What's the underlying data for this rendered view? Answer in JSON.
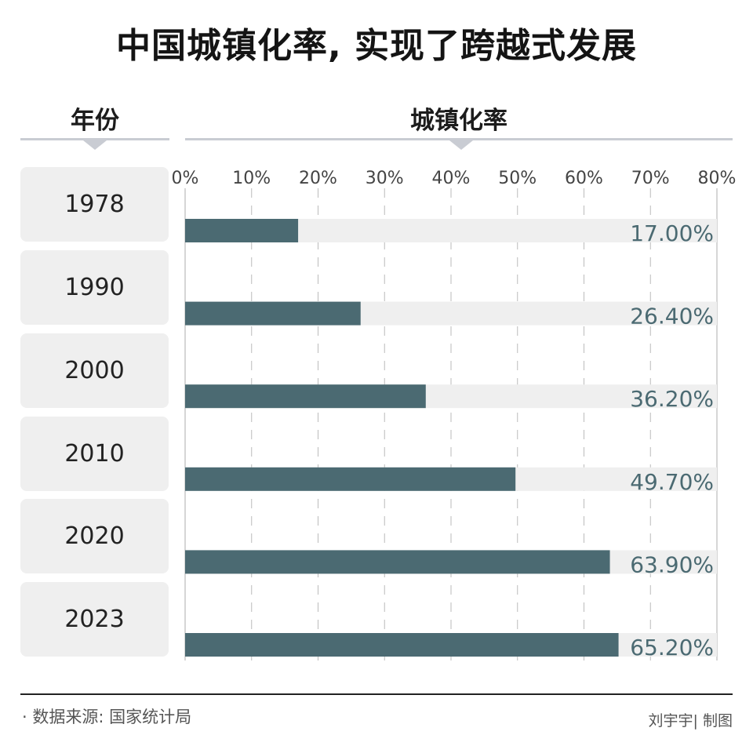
{
  "header": {
    "title": "中国城镇化率, 实现了跨越式发展",
    "year_column": "年份",
    "rate_column": "城镇化率"
  },
  "footer": {
    "source": "· 数据来源: 国家统计局",
    "credit": "刘宇宇| 制图"
  },
  "colors": {
    "bar": "#4b6a72",
    "track": "#efefef",
    "value_label": "#4b6a72",
    "tick_label": "#444444",
    "grid": "#bbbbbb"
  },
  "chart_data": {
    "type": "bar",
    "orientation": "horizontal",
    "categories": [
      "1978",
      "1990",
      "2000",
      "2010",
      "2020",
      "2023"
    ],
    "values": [
      17.0,
      26.4,
      36.2,
      49.7,
      63.9,
      65.2
    ],
    "value_labels": [
      "17.00%",
      "26.40%",
      "36.20%",
      "49.70%",
      "63.90%",
      "65.20%"
    ],
    "xlim": [
      0,
      80
    ],
    "tick_labels": [
      "0%",
      "10%",
      "20%",
      "30%",
      "40%",
      "50%",
      "60%",
      "70%",
      "80%"
    ],
    "grid": true
  }
}
